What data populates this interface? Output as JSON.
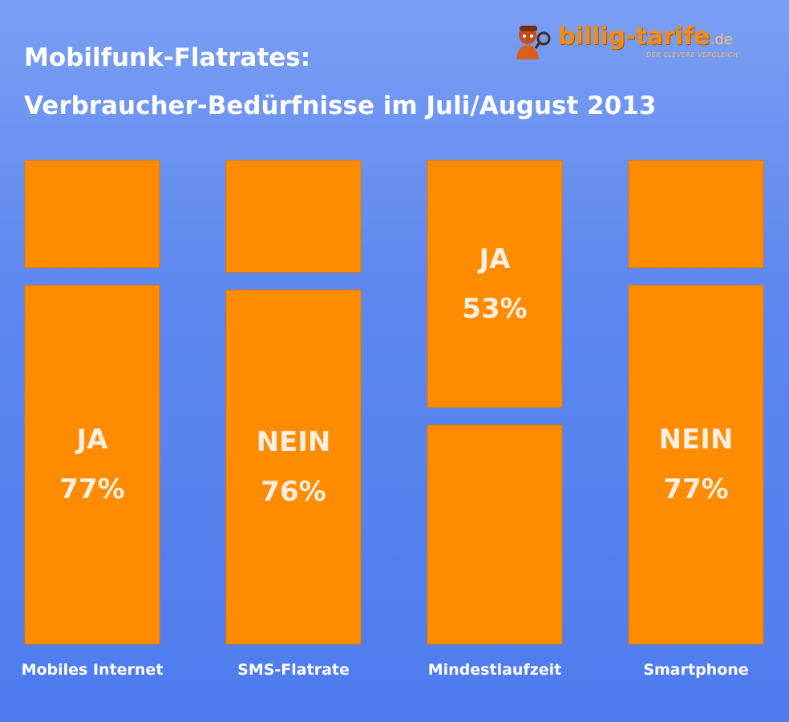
{
  "title": {
    "line1": "Mobilfunk-Flatrates:",
    "line2": "Verbraucher-Bedürfnisse im Juli/August 2013"
  },
  "logo": {
    "brand": "billig-tarife",
    "tld": ".de",
    "slogan": "DER CLEVERE VERGLEICH"
  },
  "colors": {
    "bar": "#ff8c00",
    "bar_edge": "#e07800",
    "background_top": "#7a9ef3",
    "background_bottom": "#4f7cee",
    "text": "#ffffff"
  },
  "chart_data": {
    "type": "bar",
    "stacked": true,
    "percent": true,
    "categories": [
      "Mobiles Internet",
      "SMS-Flatrate",
      "Mindestlaufzeit",
      "Smartphone"
    ],
    "series": [
      {
        "name": "upper",
        "values": [
          23,
          24,
          53,
          23
        ]
      },
      {
        "name": "lower",
        "values": [
          77,
          76,
          47,
          77
        ]
      }
    ],
    "segment_labels": [
      {
        "category": "Mobiles Internet",
        "answer": "JA",
        "percent": "77%",
        "segment": "lower"
      },
      {
        "category": "SMS-Flatrate",
        "answer": "NEIN",
        "percent": "76%",
        "segment": "lower"
      },
      {
        "category": "Mindestlaufzeit",
        "answer": "JA",
        "percent": "53%",
        "segment": "upper"
      },
      {
        "category": "Smartphone",
        "answer": "NEIN",
        "percent": "77%",
        "segment": "lower"
      }
    ],
    "ylim": [
      0,
      100
    ]
  }
}
